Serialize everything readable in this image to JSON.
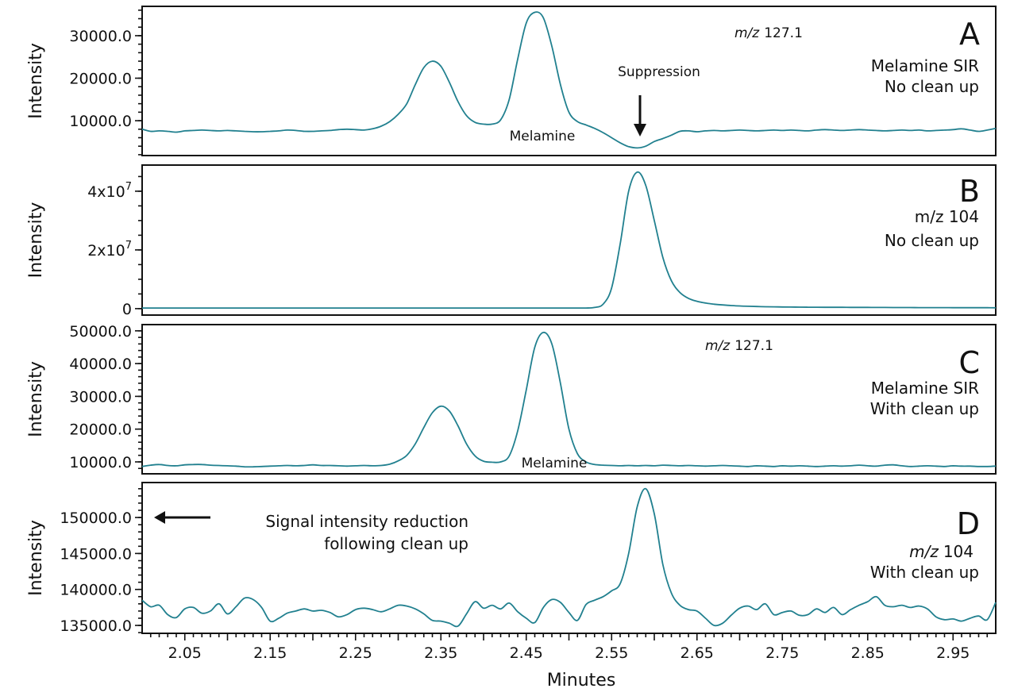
{
  "chart_data": {
    "type": "line",
    "xlabel": "Minutes",
    "xlim": [
      2.0,
      3.0
    ],
    "xtick_labels": [
      "2.05",
      "2.15",
      "2.25",
      "2.35",
      "2.45",
      "2.55",
      "2.65",
      "2.75",
      "2.85",
      "2.95"
    ],
    "line_color": "#21808f",
    "grid": false,
    "x": [
      2.0,
      2.01,
      2.02,
      2.03,
      2.04,
      2.05,
      2.06,
      2.07,
      2.08,
      2.09,
      2.1,
      2.11,
      2.12,
      2.13,
      2.14,
      2.15,
      2.16,
      2.17,
      2.18,
      2.19,
      2.2,
      2.21,
      2.22,
      2.23,
      2.24,
      2.25,
      2.26,
      2.27,
      2.28,
      2.29,
      2.3,
      2.31,
      2.32,
      2.33,
      2.34,
      2.35,
      2.36,
      2.37,
      2.38,
      2.39,
      2.4,
      2.41,
      2.42,
      2.43,
      2.44,
      2.45,
      2.46,
      2.47,
      2.48,
      2.49,
      2.5,
      2.51,
      2.52,
      2.53,
      2.54,
      2.55,
      2.56,
      2.57,
      2.58,
      2.59,
      2.6,
      2.61,
      2.62,
      2.63,
      2.64,
      2.65,
      2.66,
      2.67,
      2.68,
      2.69,
      2.7,
      2.71,
      2.72,
      2.73,
      2.74,
      2.75,
      2.76,
      2.77,
      2.78,
      2.79,
      2.8,
      2.81,
      2.82,
      2.83,
      2.84,
      2.85,
      2.86,
      2.87,
      2.88,
      2.89,
      2.9,
      2.91,
      2.92,
      2.93,
      2.94,
      2.95,
      2.96,
      2.97,
      2.98,
      2.99,
      3.0
    ],
    "panels": [
      {
        "letter": "A",
        "ylabel": "Intensity",
        "ylim": [
          1800,
          36900
        ],
        "yticks": [
          {
            "value": 10000,
            "label": "10000.0"
          },
          {
            "value": 20000,
            "label": "20000.0"
          },
          {
            "value": 30000,
            "label": "30000.0"
          }
        ],
        "minor_step": 2000,
        "mz_prefix": "m/z",
        "mz_value": "127.1",
        "line1": "Melamine SIR",
        "line2": "No clean up",
        "peak_label": "Melamine",
        "arrow_label": "Suppression",
        "values": [
          8000,
          7500,
          7600,
          7500,
          7300,
          7600,
          7700,
          7800,
          7700,
          7600,
          7700,
          7600,
          7500,
          7400,
          7400,
          7500,
          7600,
          7800,
          7700,
          7500,
          7500,
          7600,
          7700,
          7900,
          8000,
          7900,
          7800,
          8100,
          8700,
          9800,
          11500,
          14000,
          18500,
          22500,
          24000,
          22800,
          19000,
          14500,
          11200,
          9600,
          9200,
          9200,
          10200,
          15000,
          24500,
          33000,
          35500,
          34200,
          27500,
          18500,
          12000,
          9800,
          9000,
          8200,
          7200,
          6000,
          4800,
          3900,
          3600,
          4000,
          5100,
          5800,
          6600,
          7500,
          7600,
          7400,
          7600,
          7700,
          7600,
          7700,
          7800,
          7700,
          7600,
          7700,
          7800,
          7700,
          7800,
          7700,
          7600,
          7800,
          7900,
          7800,
          7700,
          7800,
          7900,
          7800,
          7700,
          7600,
          7700,
          7800,
          7700,
          7800,
          7600,
          7700,
          7800,
          7900,
          8100,
          7800,
          7500,
          7800,
          8200
        ]
      },
      {
        "letter": "B",
        "ylabel": "Intensity",
        "ylim": [
          -2200000,
          48900000
        ],
        "yticks": [
          {
            "value": 0,
            "label": "0",
            "exp": ""
          },
          {
            "value": 20000000,
            "label": "2x10",
            "exp": "7"
          },
          {
            "value": 40000000,
            "label": "4x10",
            "exp": "7"
          }
        ],
        "minor_step": 5000000,
        "line0": "m/z 104",
        "line2": "No clean up",
        "values": [
          200000,
          200000,
          200000,
          200000,
          200000,
          200000,
          200000,
          200000,
          200000,
          200000,
          200000,
          200000,
          200000,
          200000,
          200000,
          200000,
          200000,
          200000,
          200000,
          200000,
          200000,
          200000,
          200000,
          200000,
          200000,
          200000,
          200000,
          200000,
          200000,
          200000,
          200000,
          200000,
          200000,
          200000,
          200000,
          200000,
          200000,
          200000,
          200000,
          200000,
          200000,
          200000,
          200000,
          200000,
          200000,
          200000,
          200000,
          200000,
          200000,
          200000,
          200000,
          200000,
          200000,
          400000,
          1500000,
          7000000,
          22000000,
          40000000,
          46500000,
          42000000,
          30000000,
          17500000,
          9500000,
          5500000,
          3500000,
          2500000,
          1900000,
          1500000,
          1250000,
          1050000,
          900000,
          800000,
          720000,
          650000,
          600000,
          560000,
          530000,
          510000,
          490000,
          470000,
          460000,
          450000,
          440000,
          430000,
          420000,
          410000,
          400000,
          390000,
          380000,
          370000,
          360000,
          350000,
          340000,
          335000,
          330000,
          325000,
          320000,
          315000,
          310000,
          305000,
          300000
        ]
      },
      {
        "letter": "C",
        "ylabel": "Intensity",
        "ylim": [
          6360,
          51900
        ],
        "yticks": [
          {
            "value": 10000,
            "label": "10000.0"
          },
          {
            "value": 20000,
            "label": "20000.0"
          },
          {
            "value": 30000,
            "label": "30000.0"
          },
          {
            "value": 40000,
            "label": "40000.0"
          },
          {
            "value": 50000,
            "label": "50000.0"
          }
        ],
        "minor_step": 2000,
        "mz_prefix": "m/z",
        "mz_value": "127.1",
        "line1": "Melamine SIR",
        "line2": "With clean up",
        "peak_label": "Melamine",
        "values": [
          8600,
          9000,
          9200,
          8900,
          8800,
          9100,
          9200,
          9200,
          9000,
          8900,
          8800,
          8700,
          8500,
          8500,
          8600,
          8700,
          8800,
          8900,
          8800,
          8900,
          9100,
          8900,
          8900,
          8800,
          8700,
          8800,
          8900,
          8800,
          8900,
          9300,
          10300,
          12000,
          15500,
          20500,
          25000,
          27000,
          25500,
          21000,
          15500,
          11800,
          10200,
          9900,
          10000,
          11800,
          19500,
          32000,
          45000,
          49500,
          46000,
          34000,
          20000,
          12500,
          10000,
          9200,
          9000,
          8900,
          8800,
          8900,
          8800,
          8900,
          8800,
          9000,
          8900,
          8800,
          8900,
          8800,
          8700,
          8800,
          8900,
          8800,
          8700,
          8600,
          8800,
          8700,
          8600,
          8800,
          8700,
          8800,
          8700,
          8600,
          8700,
          8800,
          8700,
          8800,
          9000,
          8800,
          8700,
          9000,
          9100,
          8800,
          8600,
          8700,
          8800,
          8700,
          8600,
          8800,
          8700,
          8700,
          8600,
          8600,
          8700
        ]
      },
      {
        "letter": "D",
        "ylabel": "Intensity",
        "ylim": [
          133900,
          154860
        ],
        "yticks": [
          {
            "value": 135000,
            "label": "135000.0"
          },
          {
            "value": 140000,
            "label": "140000.0"
          },
          {
            "value": 145000,
            "label": "145000.0"
          },
          {
            "value": 150000,
            "label": "150000.0"
          }
        ],
        "minor_step": 1000,
        "mz_prefix": "m/z",
        "mz_value": "104",
        "line2": "With clean up",
        "note_line1": "Signal intensity reduction",
        "note_line2": "following clean up",
        "values": [
          138500,
          137600,
          137800,
          136500,
          136100,
          137300,
          137500,
          136700,
          137000,
          138000,
          136600,
          137600,
          138800,
          138600,
          137500,
          135600,
          136000,
          136700,
          137000,
          137300,
          137000,
          137100,
          136800,
          136200,
          136500,
          137200,
          137400,
          137200,
          136900,
          137300,
          137800,
          137700,
          137300,
          136600,
          135700,
          135600,
          135300,
          134900,
          136600,
          138300,
          137400,
          137800,
          137300,
          138100,
          136900,
          136000,
          135400,
          137500,
          138600,
          138200,
          136800,
          135700,
          137900,
          138500,
          139000,
          139800,
          140800,
          145000,
          151500,
          154000,
          150500,
          143500,
          139500,
          137800,
          137200,
          137000,
          136000,
          135000,
          135300,
          136400,
          137400,
          137700,
          137200,
          138000,
          136500,
          136800,
          137000,
          136400,
          136500,
          137300,
          136800,
          137500,
          136500,
          137200,
          137800,
          138300,
          139000,
          137800,
          137600,
          137800,
          137500,
          137700,
          137300,
          136200,
          135800,
          135900,
          135600,
          136000,
          136300,
          135800,
          138200
        ]
      }
    ]
  }
}
